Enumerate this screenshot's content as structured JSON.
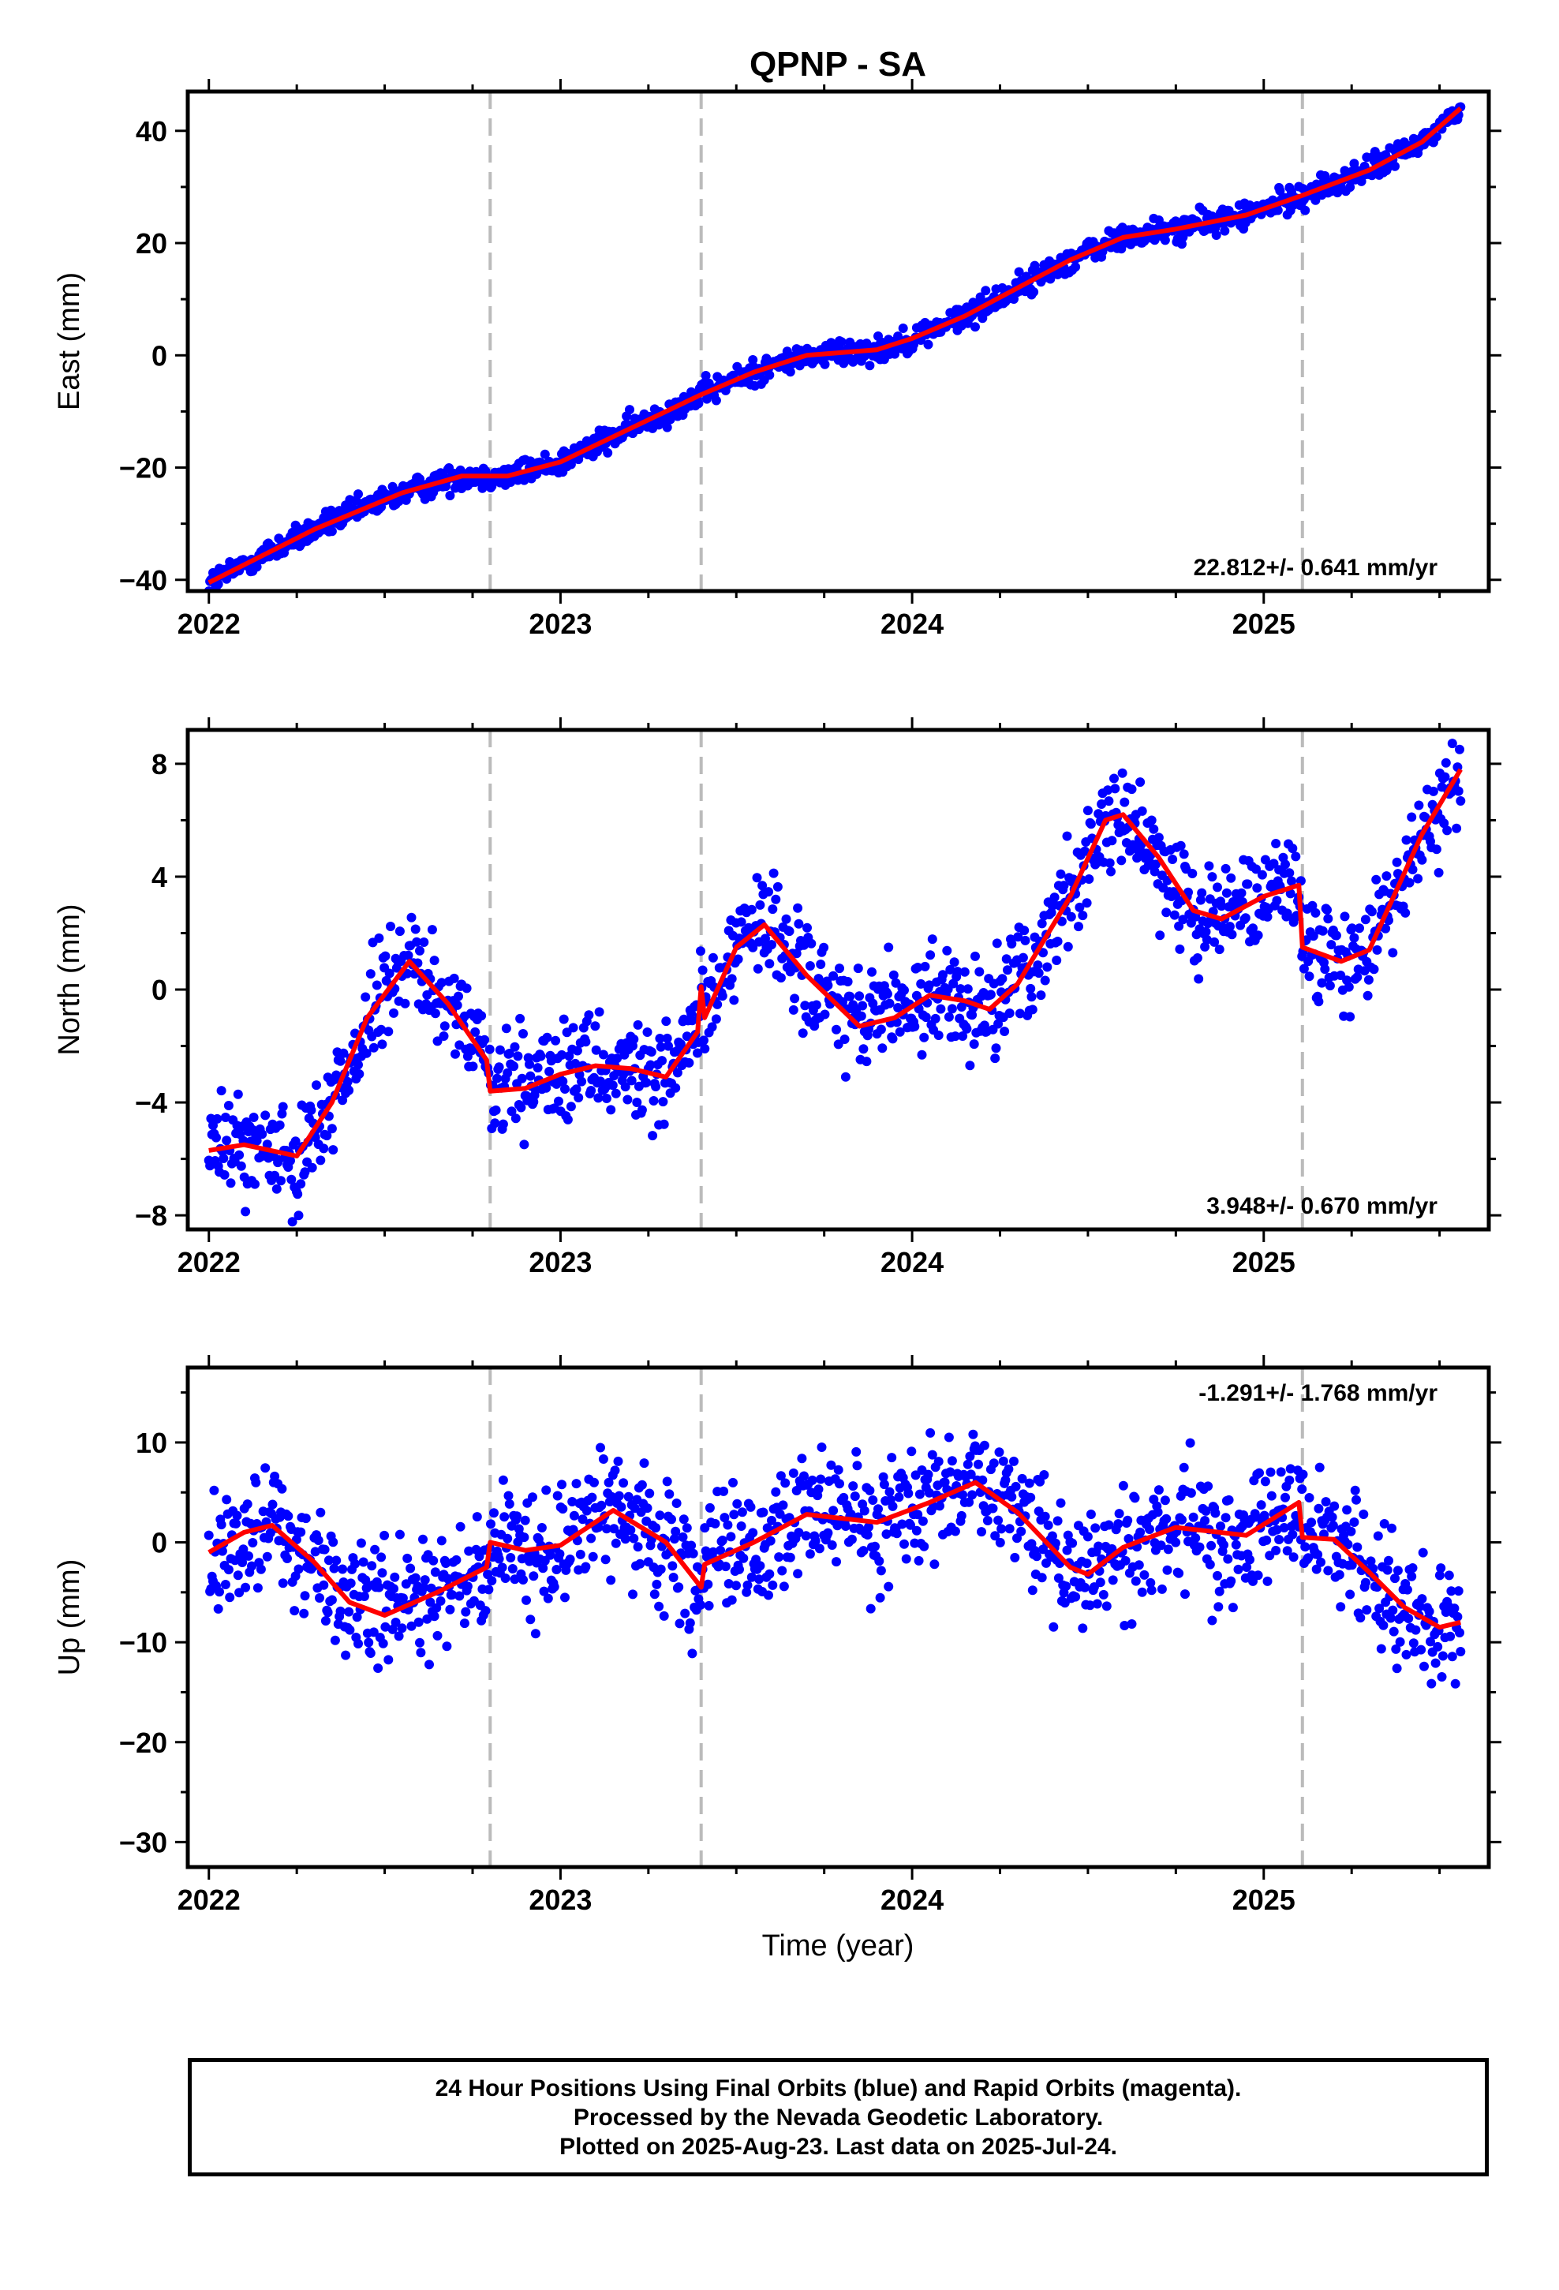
{
  "title": "QPNP - SA",
  "xlabel": "Time (year)",
  "footer": {
    "line1": "24 Hour Positions Using Final Orbits (blue) and Rapid Orbits (magenta).",
    "line2": "Processed by the Nevada Geodetic Laboratory.",
    "line3": "Plotted on 2025-Aug-23. Last data on 2025-Jul-24."
  },
  "colors": {
    "points": "#0000ff",
    "model": "#ff0000",
    "breaks": "#bbbbbb",
    "axes": "#000000"
  },
  "chart_data": [
    {
      "type": "scatter",
      "name": "east",
      "ylabel": "East (mm)",
      "rate_text": "22.812+/- 0.641 mm/yr",
      "xlim": [
        2021.94,
        2025.64
      ],
      "ylim": [
        -42,
        47
      ],
      "x_ticks": [
        2022,
        2023,
        2024,
        2025
      ],
      "y_ticks": [
        -40,
        -20,
        0,
        20,
        40
      ],
      "breaks": [
        2022.8,
        2023.4,
        2025.11
      ],
      "model": [
        [
          2022.0,
          -40.5
        ],
        [
          2022.3,
          -31
        ],
        [
          2022.55,
          -24.5
        ],
        [
          2022.72,
          -21.5
        ],
        [
          2022.85,
          -21.5
        ],
        [
          2023.0,
          -19
        ],
        [
          2023.2,
          -13
        ],
        [
          2023.4,
          -7
        ],
        [
          2023.55,
          -3
        ],
        [
          2023.7,
          0
        ],
        [
          2023.9,
          1
        ],
        [
          2024.0,
          3
        ],
        [
          2024.15,
          7
        ],
        [
          2024.3,
          12
        ],
        [
          2024.45,
          17
        ],
        [
          2024.6,
          21
        ],
        [
          2024.75,
          22.5
        ],
        [
          2024.95,
          25
        ],
        [
          2025.11,
          28.5
        ],
        [
          2025.3,
          33
        ],
        [
          2025.45,
          38
        ],
        [
          2025.56,
          44
        ]
      ],
      "scatter_amp": 1.6,
      "n_points": 1200
    },
    {
      "type": "scatter",
      "name": "north",
      "ylabel": "North (mm)",
      "rate_text": "3.948+/- 0.670 mm/yr",
      "xlim": [
        2021.94,
        2025.64
      ],
      "ylim": [
        -8.5,
        9.2
      ],
      "x_ticks": [
        2022,
        2023,
        2024,
        2025
      ],
      "y_ticks": [
        -8,
        -4,
        0,
        4,
        8
      ],
      "breaks": [
        2022.8,
        2023.4,
        2025.11
      ],
      "model": [
        [
          2022.0,
          -5.7
        ],
        [
          2022.1,
          -5.5
        ],
        [
          2022.25,
          -5.9
        ],
        [
          2022.35,
          -4
        ],
        [
          2022.45,
          -1
        ],
        [
          2022.57,
          1.0
        ],
        [
          2022.68,
          -0.5
        ],
        [
          2022.79,
          -2.5
        ],
        [
          2022.8,
          -3.6
        ],
        [
          2022.9,
          -3.5
        ],
        [
          2023.0,
          -3.0
        ],
        [
          2023.1,
          -2.7
        ],
        [
          2023.2,
          -2.8
        ],
        [
          2023.3,
          -3.1
        ],
        [
          2023.39,
          -1.5
        ],
        [
          2023.4,
          0.1
        ],
        [
          2023.41,
          -1.0
        ],
        [
          2023.5,
          1.5
        ],
        [
          2023.58,
          2.3
        ],
        [
          2023.7,
          0.5
        ],
        [
          2023.85,
          -1.3
        ],
        [
          2023.95,
          -1.0
        ],
        [
          2024.05,
          -0.2
        ],
        [
          2024.15,
          -0.4
        ],
        [
          2024.22,
          -0.7
        ],
        [
          2024.3,
          0.2
        ],
        [
          2024.45,
          3.3
        ],
        [
          2024.55,
          6.0
        ],
        [
          2024.6,
          6.2
        ],
        [
          2024.7,
          4.7
        ],
        [
          2024.8,
          2.8
        ],
        [
          2024.88,
          2.5
        ],
        [
          2025.0,
          3.3
        ],
        [
          2025.1,
          3.7
        ],
        [
          2025.11,
          1.5
        ],
        [
          2025.22,
          1.0
        ],
        [
          2025.3,
          1.4
        ],
        [
          2025.45,
          5.5
        ],
        [
          2025.56,
          7.8
        ]
      ],
      "scatter_amp": 1.3,
      "n_points": 1200
    },
    {
      "type": "scatter",
      "name": "up",
      "ylabel": "Up (mm)",
      "rate_text": "-1.291+/- 1.768 mm/yr",
      "xlim": [
        2021.94,
        2025.64
      ],
      "ylim": [
        -32.5,
        17.5
      ],
      "x_ticks": [
        2022,
        2023,
        2024,
        2025
      ],
      "y_ticks": [
        -30,
        -20,
        -10,
        0,
        10
      ],
      "breaks": [
        2022.8,
        2023.4,
        2025.11
      ],
      "model": [
        [
          2022.0,
          -1
        ],
        [
          2022.1,
          1
        ],
        [
          2022.18,
          1.7
        ],
        [
          2022.3,
          -2
        ],
        [
          2022.4,
          -6
        ],
        [
          2022.5,
          -7.3
        ],
        [
          2022.65,
          -5
        ],
        [
          2022.79,
          -2.5
        ],
        [
          2022.8,
          0
        ],
        [
          2022.9,
          -0.8
        ],
        [
          2023.0,
          -0.3
        ],
        [
          2023.15,
          3.2
        ],
        [
          2023.3,
          0
        ],
        [
          2023.4,
          -4.5
        ],
        [
          2023.41,
          -2.2
        ],
        [
          2023.55,
          0
        ],
        [
          2023.7,
          2.8
        ],
        [
          2023.9,
          2
        ],
        [
          2024.05,
          4
        ],
        [
          2024.18,
          6
        ],
        [
          2024.3,
          3
        ],
        [
          2024.45,
          -2.5
        ],
        [
          2024.5,
          -3.2
        ],
        [
          2024.6,
          -0.5
        ],
        [
          2024.75,
          1.5
        ],
        [
          2024.95,
          0.7
        ],
        [
          2025.1,
          4
        ],
        [
          2025.11,
          0.5
        ],
        [
          2025.2,
          0.3
        ],
        [
          2025.3,
          -3
        ],
        [
          2025.4,
          -6.5
        ],
        [
          2025.5,
          -8.5
        ],
        [
          2025.56,
          -8
        ]
      ],
      "scatter_amp": 4.3,
      "n_points": 1200
    }
  ]
}
